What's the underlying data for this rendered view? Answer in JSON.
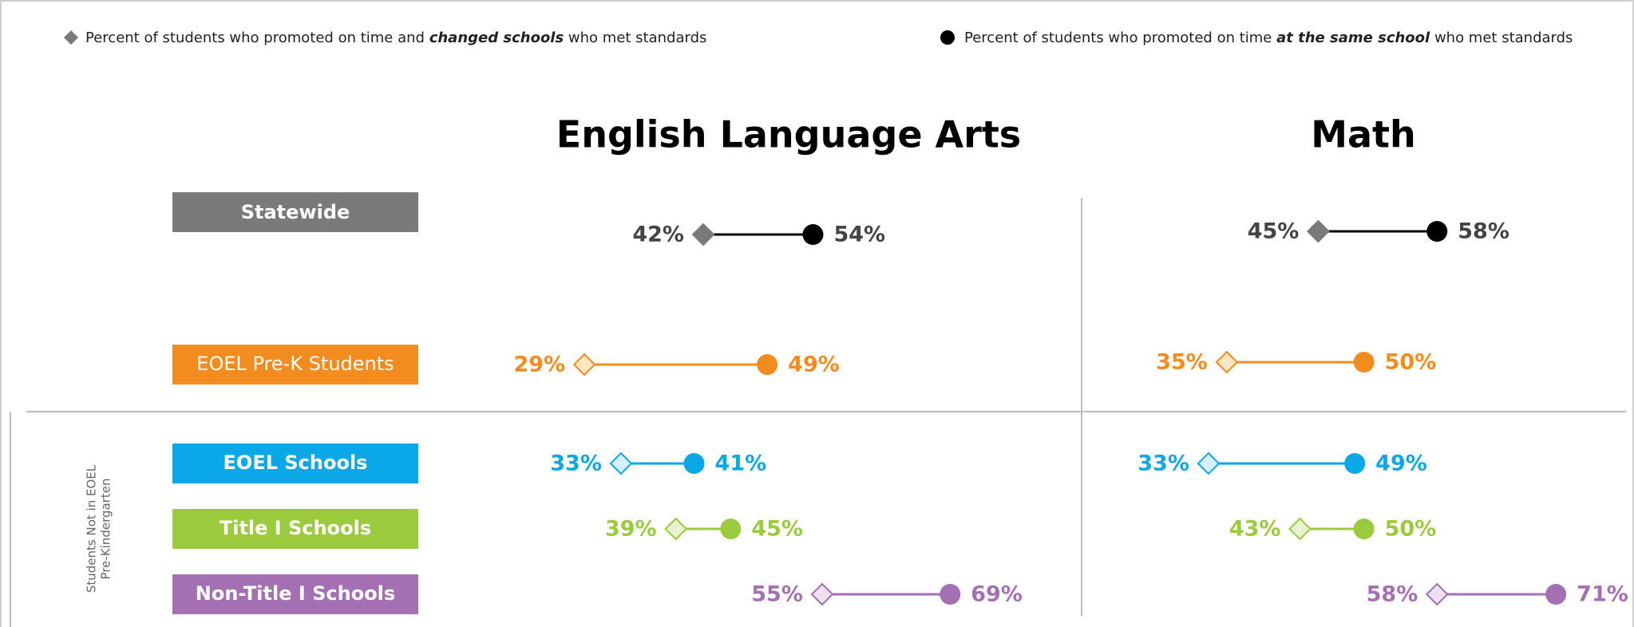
{
  "legend": [
    {
      "marker": "diamond",
      "parts": [
        "Percent of students who promoted on time and ",
        "changed schools",
        " who met standards"
      ]
    },
    {
      "marker": "circle",
      "parts": [
        "Percent of students who promoted on time ",
        "at the same school",
        " who met standards"
      ]
    }
  ],
  "rows": [
    {
      "label": "Statewide",
      "color": "#7a7a7a",
      "mark": "#000000",
      "diamond_fill": "#7a7a7a",
      "text": "#444444",
      "bold": true
    },
    {
      "label": "EOEL Pre-K Students",
      "color": "#f28c1f",
      "mark": "#f28c1f",
      "diamond_fill": "#fde6c0",
      "text": "#f28c1f",
      "bold": false
    },
    {
      "label": "EOEL Schools",
      "color": "#0aa8e6",
      "mark": "#0aa8e6",
      "diamond_fill": "#d6f0fb",
      "text": "#0aa8e6",
      "bold": true
    },
    {
      "label": "Title I Schools",
      "color": "#9bca3c",
      "mark": "#9bca3c",
      "diamond_fill": "#e6f2d2",
      "text": "#9bca3c",
      "bold": true
    },
    {
      "label": "Non-Title I Schools",
      "color": "#a56fb4",
      "mark": "#a56fb4",
      "diamond_fill": "#ede0f1",
      "text": "#a56fb4",
      "bold": true
    }
  ],
  "group_label": [
    "Students Not in EOEL",
    "Pre-Kindergarten"
  ],
  "chart_data": [
    {
      "type": "dumbbell",
      "title": "English Language Arts",
      "xlim": [
        20,
        75
      ],
      "series": [
        {
          "marker": "diamond",
          "values": [
            42,
            29,
            33,
            39,
            55
          ],
          "value_labels": [
            "42%",
            "29%",
            "33%",
            "39%",
            "55%"
          ]
        },
        {
          "marker": "circle",
          "values": [
            54,
            49,
            41,
            45,
            69
          ],
          "value_labels": [
            "54%",
            "49%",
            "41%",
            "45%",
            "69%"
          ]
        }
      ]
    },
    {
      "type": "dumbbell",
      "title": "Math",
      "xlim": [
        20,
        75
      ],
      "series": [
        {
          "marker": "diamond",
          "values": [
            45,
            35,
            33,
            43,
            58
          ],
          "value_labels": [
            "45%",
            "35%",
            "33%",
            "43%",
            "58%"
          ]
        },
        {
          "marker": "circle",
          "values": [
            58,
            50,
            49,
            50,
            71
          ],
          "value_labels": [
            "58%",
            "50%",
            "49%",
            "50%",
            "71%"
          ]
        }
      ]
    }
  ]
}
